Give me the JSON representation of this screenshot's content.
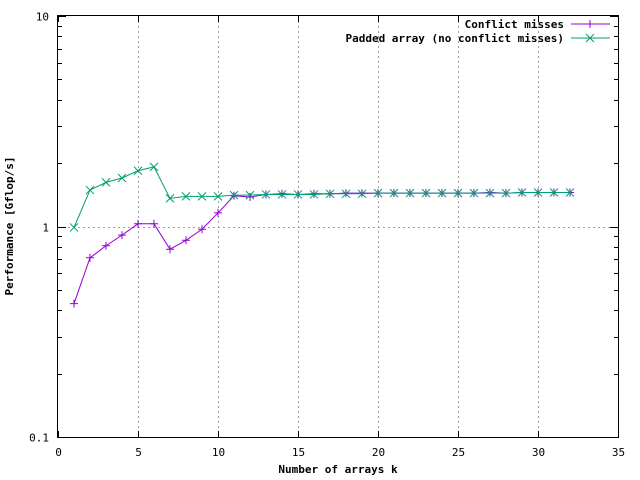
{
  "chart_data": {
    "type": "line",
    "title": "",
    "xlabel": "Number of arrays k",
    "ylabel": "Performance [Gflop/s]",
    "xlim": [
      0,
      35
    ],
    "ylim": [
      0.1,
      10
    ],
    "y_scale": "log",
    "grid": true,
    "legend_position": "top-right",
    "x_ticks": [
      "0",
      "5",
      "10",
      "15",
      "20",
      "25",
      "30",
      "35"
    ],
    "y_ticks": [
      "0.1",
      "1",
      "10"
    ],
    "series": [
      {
        "name": "Conflict misses",
        "color": "#9400d3",
        "marker": "plus",
        "x": [
          1,
          2,
          3,
          4,
          5,
          6,
          7,
          8,
          9,
          10,
          11,
          12,
          13,
          14,
          15,
          16,
          17,
          18,
          19,
          20,
          21,
          22,
          23,
          24,
          25,
          26,
          27,
          28,
          29,
          30,
          31,
          32
        ],
        "y": [
          0.43,
          0.71,
          0.81,
          0.91,
          1.03,
          1.03,
          0.78,
          0.86,
          0.97,
          1.16,
          1.4,
          1.38,
          1.42,
          1.43,
          1.42,
          1.43,
          1.43,
          1.44,
          1.44,
          1.44,
          1.44,
          1.44,
          1.44,
          1.44,
          1.44,
          1.44,
          1.45,
          1.44,
          1.45,
          1.45,
          1.45,
          1.45
        ]
      },
      {
        "name": "Padded array (no conflict misses)",
        "color": "#009e73",
        "marker": "x",
        "x": [
          1,
          2,
          3,
          4,
          5,
          6,
          7,
          8,
          9,
          10,
          11,
          12,
          13,
          14,
          15,
          16,
          17,
          18,
          19,
          20,
          21,
          22,
          23,
          24,
          25,
          26,
          27,
          28,
          29,
          30,
          31,
          32
        ],
        "y": [
          0.99,
          1.49,
          1.62,
          1.7,
          1.84,
          1.92,
          1.36,
          1.39,
          1.39,
          1.39,
          1.41,
          1.41,
          1.42,
          1.42,
          1.42,
          1.42,
          1.43,
          1.43,
          1.43,
          1.44,
          1.44,
          1.44,
          1.44,
          1.44,
          1.44,
          1.44,
          1.44,
          1.44,
          1.45,
          1.45,
          1.45,
          1.45
        ]
      }
    ]
  }
}
